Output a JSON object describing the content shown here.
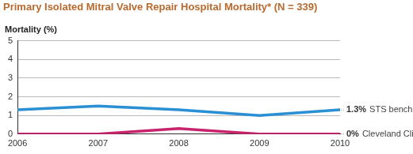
{
  "chart_data": {
    "type": "line",
    "title": "Primary Isolated Mitral Valve Repair Hospital Mortality* (N = 339)",
    "y_label": "Mortality (%)",
    "categories": [
      "2006",
      "2007",
      "2008",
      "2009",
      "2010"
    ],
    "series": [
      {
        "name": "STS benchmark",
        "color": "#2b8fd4",
        "values": [
          1.3,
          1.5,
          1.3,
          1.0,
          1.3
        ],
        "value_labels": [
          null,
          null,
          null,
          null,
          "1.3%"
        ]
      },
      {
        "name": "Cleveland Clinic",
        "color": "#c8246e",
        "values": [
          0,
          0,
          0.3,
          0,
          0
        ],
        "value_labels": [
          null,
          null,
          null,
          null,
          "0%"
        ]
      }
    ],
    "ylim": [
      0,
      5
    ],
    "yticks": [
      0,
      1,
      2,
      3,
      4,
      5
    ],
    "grid": true,
    "legend": "right",
    "data_labels": true
  }
}
